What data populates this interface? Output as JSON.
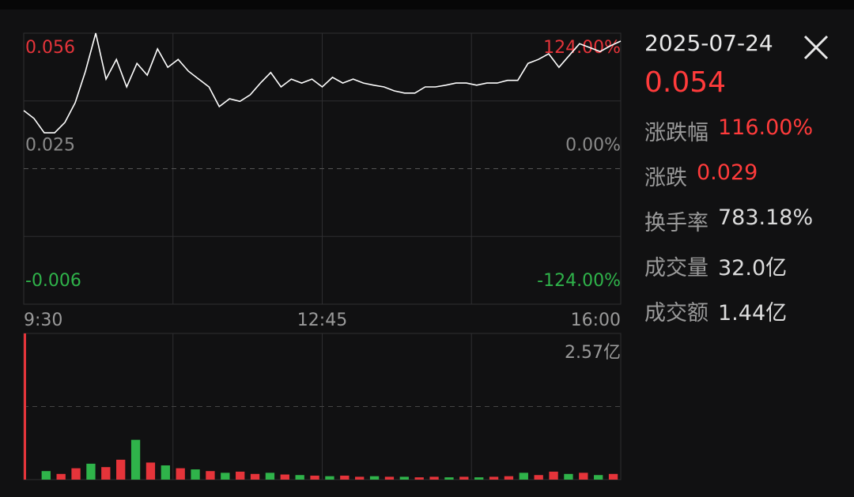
{
  "chart_data": [
    {
      "type": "line",
      "ylim": [
        -0.006,
        0.056
      ],
      "yticks": [
        0.056,
        0.025,
        -0.006
      ],
      "y2lim": [
        -124,
        124
      ],
      "y2ticks": [
        {
          "value": 124,
          "label": "124.00%"
        },
        {
          "value": 0,
          "label": "0.00%"
        },
        {
          "value": -124,
          "label": "-124.00%"
        }
      ],
      "x_labels": [
        "9:30",
        "12:45",
        "16:00"
      ],
      "up_color": "#e5343a",
      "down_color": "#2fb34a",
      "flat_color": "#8a8a8a",
      "series": [
        {
          "color": "#ffffff",
          "values": [
            0.0383,
            0.0365,
            0.0332,
            0.0332,
            0.0356,
            0.0401,
            0.0473,
            0.056,
            0.0455,
            0.05,
            0.0437,
            0.0491,
            0.0464,
            0.0524,
            0.0482,
            0.05,
            0.0473,
            0.0455,
            0.0437,
            0.0392,
            0.041,
            0.0404,
            0.0419,
            0.0446,
            0.047,
            0.0437,
            0.0455,
            0.0446,
            0.0455,
            0.0437,
            0.0459,
            0.0446,
            0.0455,
            0.0446,
            0.0441,
            0.0437,
            0.0428,
            0.0423,
            0.0423,
            0.0437,
            0.0437,
            0.0441,
            0.0446,
            0.0446,
            0.0441,
            0.0446,
            0.0446,
            0.0452,
            0.0452,
            0.0491,
            0.05,
            0.0513,
            0.0482,
            0.0509,
            0.0536,
            0.0527,
            0.0518,
            0.0531,
            0.0542
          ]
        }
      ]
    },
    {
      "type": "bar",
      "ylim": [
        0,
        2.57
      ],
      "yticks": [
        {
          "value": 2.57,
          "label": "2.57亿"
        }
      ],
      "values": [
        2.57,
        0.15,
        0.1,
        0.2,
        0.28,
        0.22,
        0.35,
        0.7,
        0.3,
        0.25,
        0.2,
        0.18,
        0.15,
        0.12,
        0.14,
        0.1,
        0.12,
        0.09,
        0.08,
        0.07,
        0.06,
        0.07,
        0.05,
        0.06,
        0.05,
        0.05,
        0.04,
        0.05,
        0.04,
        0.05,
        0.04,
        0.05,
        0.06,
        0.12,
        0.08,
        0.14,
        0.1,
        0.12,
        0.08,
        0.1
      ],
      "colors": [
        "#e5343a",
        "#2fb34a",
        "#e5343a",
        "#e5343a",
        "#2fb34a",
        "#e5343a",
        "#e5343a",
        "#2fb34a",
        "#e5343a",
        "#2fb34a",
        "#e5343a",
        "#2fb34a",
        "#e5343a",
        "#2fb34a",
        "#e5343a",
        "#e5343a",
        "#2fb34a",
        "#e5343a",
        "#2fb34a",
        "#e5343a",
        "#2fb34a",
        "#e5343a",
        "#e5343a",
        "#2fb34a",
        "#e5343a",
        "#2fb34a",
        "#e5343a",
        "#e5343a",
        "#2fb34a",
        "#e5343a",
        "#2fb34a",
        "#e5343a",
        "#e5343a",
        "#2fb34a",
        "#e5343a",
        "#e5343a",
        "#2fb34a",
        "#e5343a",
        "#2fb34a",
        "#e5343a"
      ]
    }
  ],
  "panel": {
    "date": "2025-07-24",
    "price": "0.054",
    "price_color": "#ff3b3b",
    "rows": [
      {
        "label": "涨跌幅",
        "value": "116.00%",
        "color": "#ff3b3b"
      },
      {
        "label": "涨跌",
        "value": "0.029",
        "color": "#ff3b3b"
      },
      {
        "label": "换手率",
        "value": "783.18%",
        "color": "#dcdcdc"
      },
      {
        "label": "成交量",
        "value": "32.0亿",
        "color": "#dcdcdc"
      },
      {
        "label": "成交额",
        "value": "1.44亿",
        "color": "#dcdcdc"
      }
    ]
  }
}
